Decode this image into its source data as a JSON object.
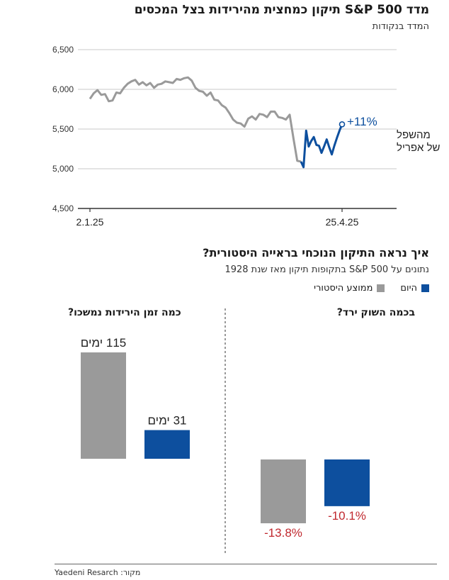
{
  "colors": {
    "historical": "#9a9a9a",
    "today": "#0d4f9e",
    "negative": "#c0282e",
    "text": "#1a1a1a",
    "grid": "#c8c8c8"
  },
  "header": {
    "title": "מדד S&P 500 תיקון כמחצית מהירידות בצל המכסים",
    "subtitle": "המדד בנקודות"
  },
  "section2": {
    "title": "איך נראה התיקון הנוכחי בראייה היסטורית?",
    "subtitle": "נתונים על S&P 500 בתקופות תיקון מאז שנת 1928"
  },
  "legend": {
    "today": "היום",
    "historical": "ממוצע היסטורי"
  },
  "source": "מקור: Yaedeni Resarch",
  "chart_data": [
    {
      "type": "line",
      "title": "מדד S&P 500 תיקון כמחצית מהירידות בצל המכסים",
      "ylabel": "המדד בנקודות",
      "ylim": [
        4500,
        6500
      ],
      "yticks": [
        4500,
        5000,
        5500,
        6000,
        6500
      ],
      "ytick_labels": [
        "4,500",
        "5,000",
        "5,500",
        "6,000",
        "6,500"
      ],
      "xtick_labels": [
        "2.1.25",
        "25.4.25"
      ],
      "grid": true,
      "series": [
        {
          "color": "historical",
          "values": [
            5880,
            5950,
            5990,
            5930,
            5940,
            5850,
            5860,
            5960,
            5950,
            6020,
            6070,
            6100,
            6120,
            6060,
            6090,
            6050,
            6080,
            6020,
            6060,
            6070,
            6100,
            6090,
            6080,
            6130,
            6120,
            6140,
            6150,
            6110,
            6020,
            5980,
            5970,
            5920,
            5960,
            5870,
            5860,
            5800,
            5770,
            5700,
            5620,
            5580,
            5570,
            5530,
            5630,
            5660,
            5620,
            5690,
            5680,
            5650,
            5720,
            5720,
            5650,
            5640,
            5620,
            5680,
            5380,
            5100,
            5090
          ]
        },
        {
          "color": "today",
          "values": [
            5090,
            5020,
            5480,
            5280,
            5350,
            5400,
            5300,
            5290,
            5200,
            5280,
            5370,
            5270,
            5180,
            5290,
            5390,
            5480,
            5560
          ]
        }
      ],
      "annotation": {
        "value": "+11%",
        "text": [
          "מהשפל",
          "של אפריל"
        ]
      }
    },
    {
      "type": "bar",
      "title": "כמה זמן הירידות נמשכו?",
      "series": [
        {
          "name": "ממוצע היסטורי",
          "color": "historical",
          "value": 115,
          "label": "115 ימים"
        },
        {
          "name": "היום",
          "color": "today",
          "value": 31,
          "label": "31 ימים"
        }
      ]
    },
    {
      "type": "bar",
      "title": "בכמה השוק ירד?",
      "series": [
        {
          "name": "ממוצע היסטורי",
          "color": "historical",
          "value": -13.8,
          "label": "-13.8%"
        },
        {
          "name": "היום",
          "color": "today",
          "value": -10.1,
          "label": "-10.1%"
        }
      ]
    }
  ]
}
